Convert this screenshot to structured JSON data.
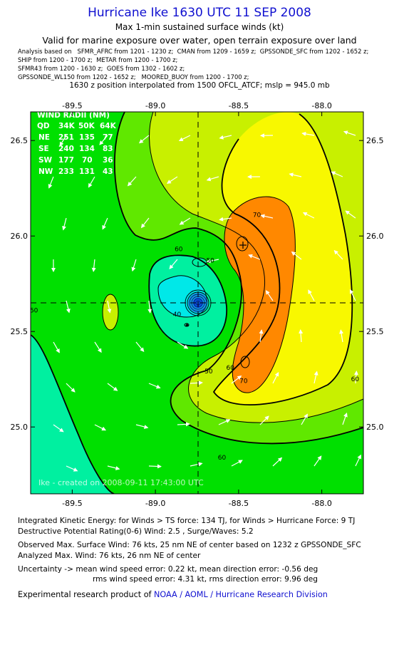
{
  "header": {
    "title": "Hurricane Ike 1630 UTC 11 SEP 2008",
    "subtitle": "Max 1-min sustained surface winds (kt)",
    "valid_for": "Valid for marine exposure over water, open terrain exposure over land",
    "analysis_lines": [
      "Analysis based on   SFMR_AFRC from 1201 - 1230 z;  CMAN from 1209 - 1659 z;  GPSSONDE_SFC from 1202 - 1652 z;",
      "SHIP from 1200 - 1700 z;  METAR from 1200 - 1700 z;",
      "SFMR43 from 1200 - 1630 z;  GOES from 1302 - 1602 z;",
      "GPSSONDE_WL150 from 1202 - 1652 z;   MOORED_BUOY from 1200 - 1700 z;"
    ],
    "position_line": "1630 z position interpolated from 1500 OFCL_ATCF; mslp = 945.0 mb"
  },
  "chart_data": {
    "type": "heatmap",
    "title": "Hurricane Ike 1630 UTC 11 SEP 2008",
    "xlim": [
      -89.75,
      -87.75
    ],
    "ylim": [
      24.65,
      26.65
    ],
    "x_ticks": [
      -89.5,
      -89.0,
      -88.5,
      -88.0
    ],
    "x_tick_labels": [
      "-89.5",
      "-89.0",
      "-88.5",
      "-88.0"
    ],
    "y_ticks": [
      25.0,
      25.5,
      26.0,
      26.5
    ],
    "y_tick_labels": [
      "25.0",
      "25.5",
      "26.0",
      "26.5"
    ],
    "center": {
      "lon": -88.67,
      "lat": 25.58
    },
    "contour_labels": [
      {
        "text": "70",
        "lon": -88.39,
        "lat": 26.1
      },
      {
        "text": "60",
        "lon": -88.86,
        "lat": 25.92
      },
      {
        "text": "50",
        "lon": -88.67,
        "lat": 25.86
      },
      {
        "text": "40",
        "lon": -88.87,
        "lat": 25.58
      },
      {
        "text": "50",
        "lon": -88.68,
        "lat": 25.28
      },
      {
        "text": "60",
        "lon": -88.55,
        "lat": 25.3
      },
      {
        "text": "70",
        "lon": -88.47,
        "lat": 25.23
      },
      {
        "text": "60",
        "lon": -87.8,
        "lat": 25.24
      },
      {
        "text": "60",
        "lon": -88.6,
        "lat": 24.83
      },
      {
        "text": "50",
        "lon": -89.73,
        "lat": 25.6
      }
    ],
    "wind_radii": {
      "title": "WIND RADII (NM)",
      "header": [
        "QD",
        "34K",
        "50K",
        "64K"
      ],
      "rows": [
        [
          "NE",
          "251",
          "135",
          "77"
        ],
        [
          "SE",
          "240",
          "134",
          "83"
        ],
        [
          "SW",
          "177",
          "70",
          "36"
        ],
        [
          "NW",
          "233",
          "131",
          "43"
        ]
      ]
    },
    "watermark": "Ike  -  created on 2008-09-11  17:43:00 UTC",
    "colors": {
      "c30_40": "#00e8e8",
      "c40_50": "#00f0a0",
      "c50_60": "#00e000",
      "c60_65": "#60e800",
      "c65_70": "#c8f000",
      "c70_80": "#f8f800",
      "c80_90": "#f0e030",
      "c90_100": "#ff8800"
    }
  },
  "footer": {
    "ike_line": "Integrated Kinetic Energy:  for Winds > TS force: 134 TJ,  for Winds > Hurricane Force: 9 TJ",
    "dpr_line": "Destructive Potential Rating(0-6)   Wind: 2.5 , Surge/Waves: 5.2",
    "obs_line": "Observed Max. Surface Wind: 76 kts, 25 nm NE of center based on 1232 z GPSSONDE_SFC",
    "analyzed_line": "Analyzed Max. Wind: 76 kts, 26 nm NE of center",
    "uncert_line1": "Uncertainty -> mean wind speed error: 0.22 kt,   mean direction error:  -0.56 deg",
    "uncert_line2": "rms wind speed error: 4.31 kt,   rms direction error: 9.96 deg",
    "product_prefix": "Experimental research product of ",
    "product_org": "NOAA / AOML / Hurricane Research Division"
  }
}
